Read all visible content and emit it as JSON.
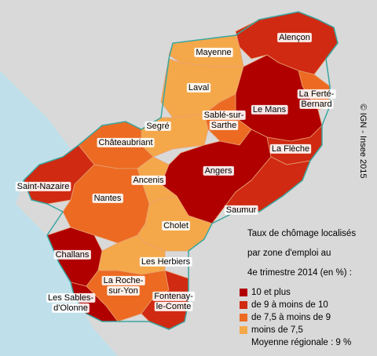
{
  "zones": [
    {
      "name_lines": [
        "Alençon"
      ],
      "color": "#d02a12"
    },
    {
      "name_lines": [
        "Mayenne"
      ],
      "color": "#f5a84a"
    },
    {
      "name_lines": [
        "Laval"
      ],
      "color": "#f5a84a"
    },
    {
      "name_lines": [
        "La Ferté-",
        "Bernard"
      ],
      "color": "#ec6a22"
    },
    {
      "name_lines": [
        "Le Mans"
      ],
      "color": "#b00000"
    },
    {
      "name_lines": [
        "Sablé-sur-",
        "Sarthe"
      ],
      "color": "#ec6a22"
    },
    {
      "name_lines": [
        "Segré"
      ],
      "color": "#f5a84a"
    },
    {
      "name_lines": [
        "Châteaubriant"
      ],
      "color": "#ec6a22"
    },
    {
      "name_lines": [
        "La Flèche"
      ],
      "color": "#d02a12"
    },
    {
      "name_lines": [
        "Angers"
      ],
      "color": "#b00000"
    },
    {
      "name_lines": [
        "Saint-Nazaire"
      ],
      "color": "#d02a12"
    },
    {
      "name_lines": [
        "Nantes"
      ],
      "color": "#ec6a22"
    },
    {
      "name_lines": [
        "Ancenis"
      ],
      "color": "#f5a84a"
    },
    {
      "name_lines": [
        "Saumur"
      ],
      "color": "#d02a12"
    },
    {
      "name_lines": [
        "Cholet"
      ],
      "color": "#f5a84a"
    },
    {
      "name_lines": [
        "Challans"
      ],
      "color": "#b00000"
    },
    {
      "name_lines": [
        "Les Herbiers"
      ],
      "color": "#f5a84a"
    },
    {
      "name_lines": [
        "La Roche-",
        "sur-Yon"
      ],
      "color": "#ec6a22"
    },
    {
      "name_lines": [
        "Les Sables-",
        "d'Olonne"
      ],
      "color": "#b00000"
    },
    {
      "name_lines": [
        "Fontenay-",
        "le-Comte"
      ],
      "color": "#d02a12"
    }
  ],
  "legend": {
    "title_lines": [
      "Taux de chômage localisés",
      "par zone d'emploi au",
      "4e trimestre 2014 (en %) :"
    ],
    "items": [
      {
        "label": "10 et plus",
        "color": "#b00000"
      },
      {
        "label": "de 9 à moins de 10",
        "color": "#d02a12"
      },
      {
        "label": "de 7,5 à moins de 9",
        "color": "#ec6a22"
      },
      {
        "label": "moins de 7,5",
        "color": "#f5a84a"
      }
    ],
    "average": "Moyenne régionale : 9 %"
  },
  "copyright": "© IGN - Insee 2015"
}
